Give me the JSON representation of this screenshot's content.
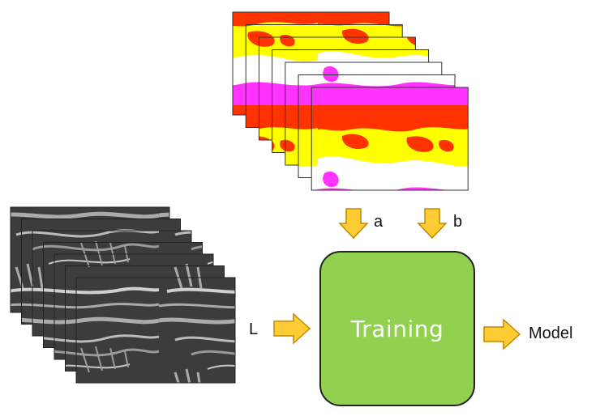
{
  "colors": {
    "arrow_fill": "#ffcc33",
    "arrow_stroke": "#c08a00",
    "training_box": "#92d050",
    "ab_yellow": "#ffff00",
    "ab_red": "#ff3300",
    "ab_magenta": "#ff33ff",
    "L_dark": "#3c3c3c",
    "L_light": "#aaaaaa"
  },
  "inputs": {
    "a_label": "a",
    "b_label": "b",
    "L_label": "L"
  },
  "process": {
    "label": "Training"
  },
  "output": {
    "label": "Model"
  },
  "stacks": {
    "ab_channel_count": 7,
    "L_channel_count": 7
  },
  "icons": [
    "down-arrow-icon",
    "right-arrow-icon"
  ]
}
